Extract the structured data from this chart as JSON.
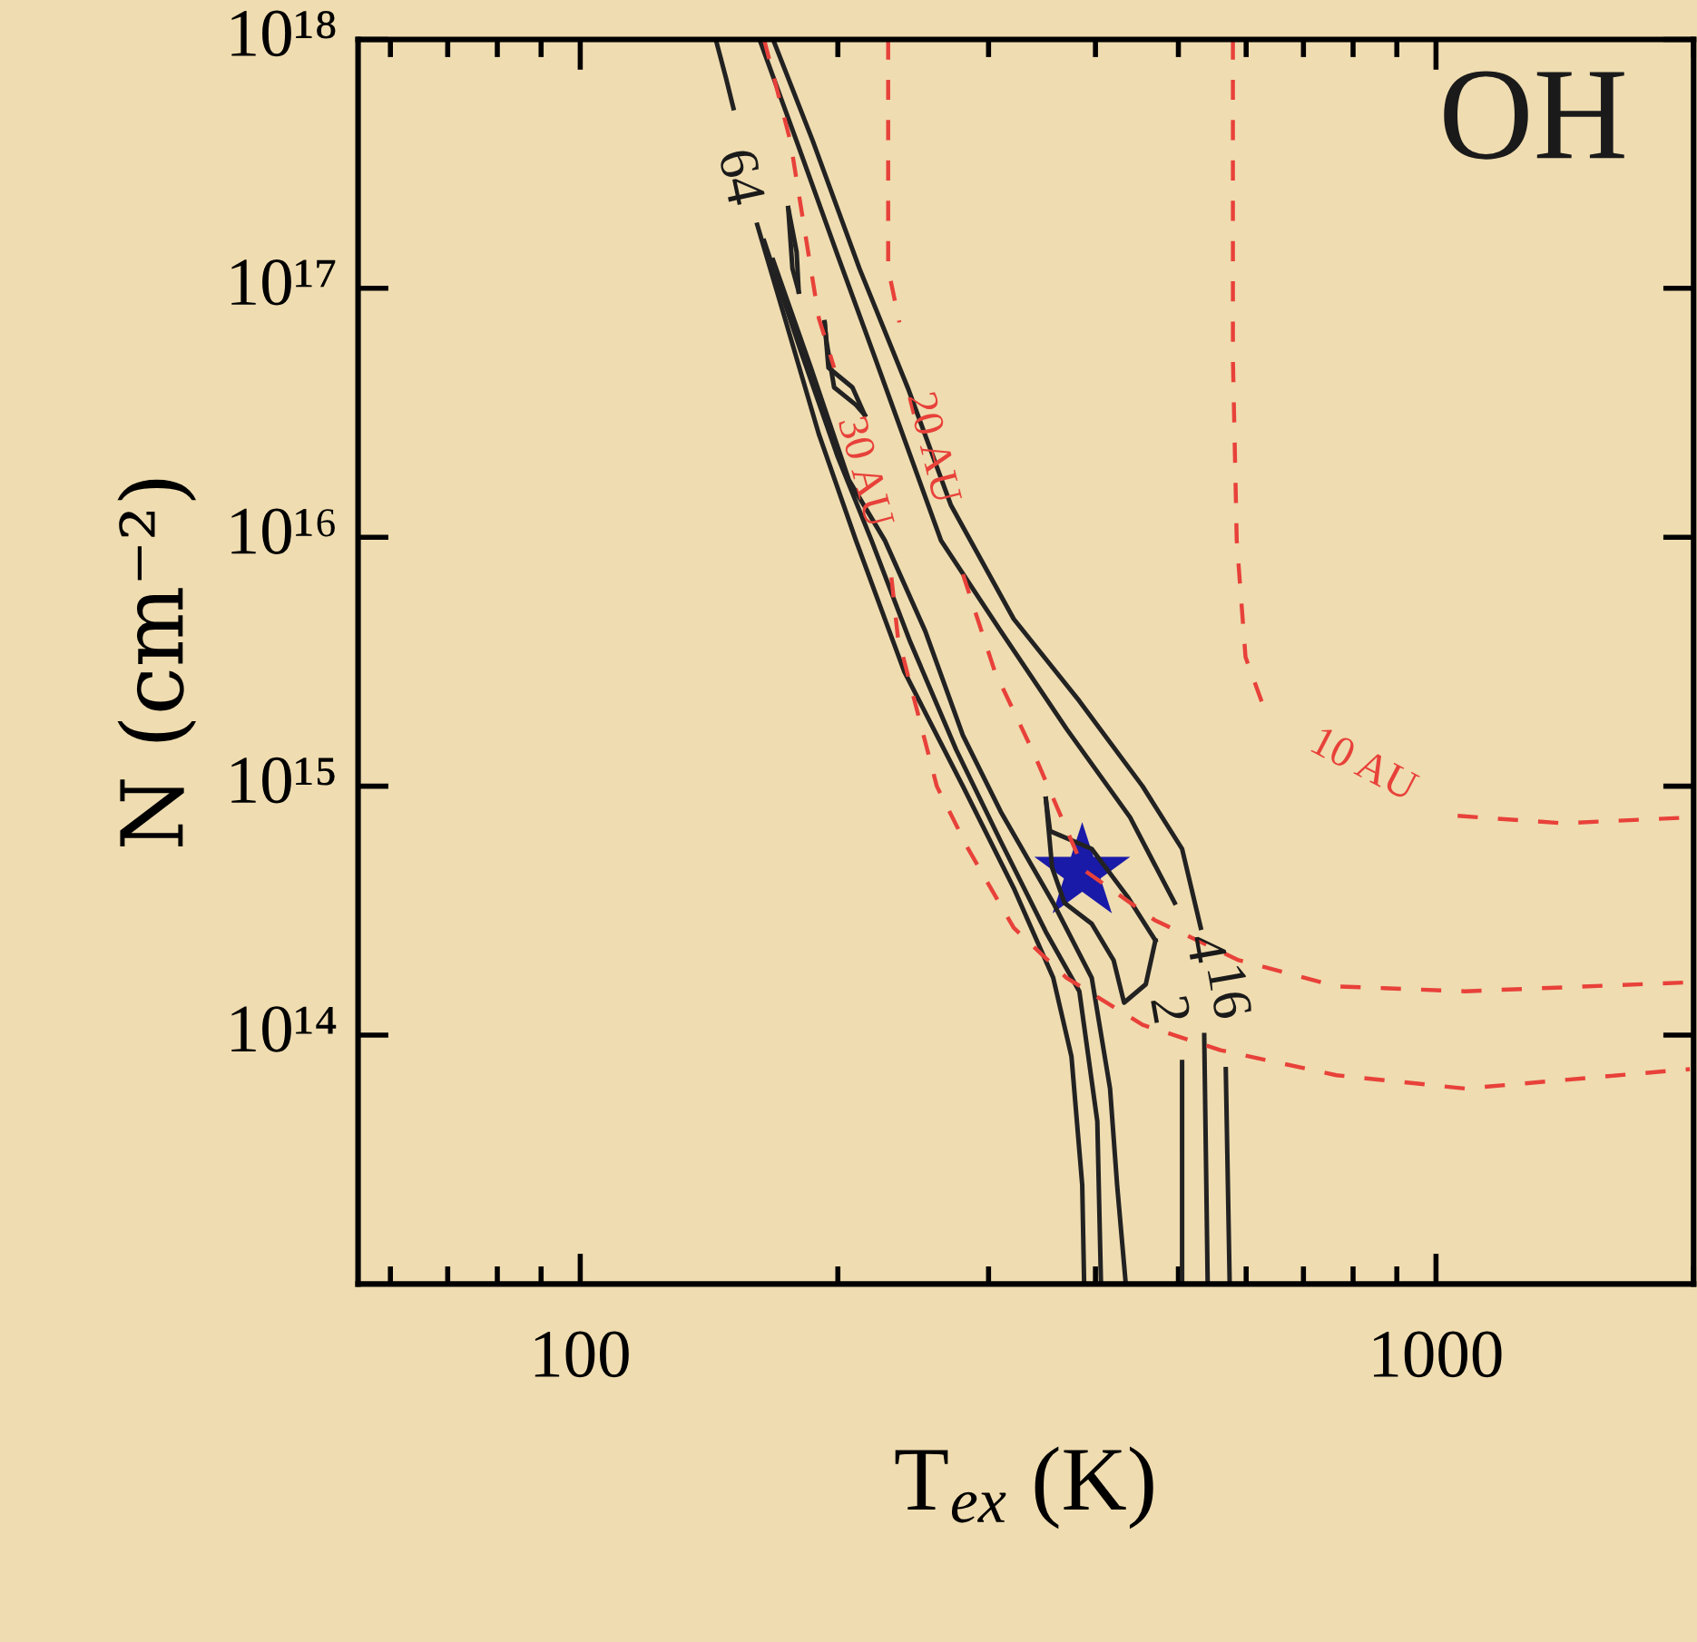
{
  "chart_data": {
    "type": "line",
    "xlabel": "T$_{ex}$ (K)",
    "ylabel": "N (cm⁻²)",
    "log": "xy",
    "xlim": [
      55,
      2000
    ],
    "ylim": [
      10000000000000.0,
      1e+18
    ],
    "xticks": [
      100,
      1000
    ],
    "yticks": [
      {
        "value": 100000000000000.0,
        "label": "10¹⁴"
      },
      {
        "value": 1000000000000000.0,
        "label": "10¹⁵"
      },
      {
        "value": 1e+16,
        "label": "10¹⁶"
      },
      {
        "value": 1e+17,
        "label": "10¹⁷"
      },
      {
        "value": 1e+18,
        "label": "10¹⁸"
      }
    ],
    "series": [
      {
        "color": "#222222",
        "x": [
          144,
          148,
          151,
          156,
          161,
          174,
          190,
          210,
          239,
          280,
          321,
          357,
          375,
          386,
          388
        ],
        "values": [
          1e+18,
          7e+17,
          5.3e+17,
          null,
          1.8e+17,
          7.3e+16,
          2.6e+16,
          9700000000000000.0,
          2900000000000000.0,
          1000000000000000.0,
          390000000000000.0,
          170000000000000.0,
          82000000000000.0,
          25000000000000.0,
          10000000000000.0
        ]
      },
      {
        "color": "#222222",
        "x": [
          164,
          181,
          200,
          219,
          243,
          275,
          310,
          350,
          383,
          402,
          406
        ],
        "values": [
          1.55e+17,
          5.6e+16,
          2.1e+16,
          9700000000000000.0,
          3800000000000000.0,
          1400000000000000.0,
          600000000000000.0,
          260000000000000.0,
          150000000000000.0,
          45000000000000.0,
          10000000000000.0
        ]
      },
      {
        "color": "#222222",
        "x": [
          168,
          186,
          206,
          227,
          253,
          280,
          310,
          357,
          396,
          416,
          424,
          434
        ],
        "values": [
          1.3e+17,
          4.8e+16,
          1.7e+16,
          9700000000000000.0,
          4200000000000000.0,
          1600000000000000.0,
          790000000000000.0,
          340000000000000.0,
          170000000000000.0,
          61000000000000.0,
          25000000000000.0,
          10000000000000.0
        ]
      },
      {
        "color": "#222222",
        "x": [
          162,
          179,
          200,
          220,
          239,
          264,
          310,
          370,
          439,
          495,
          500,
          505,
          505
        ],
        "values": [
          1e+18,
          3.9e+17,
          1.35e+17,
          5.5e+16,
          2.5e+16,
          9700000000000000.0,
          4200000000000000.0,
          1700000000000000.0,
          750000000000000.0,
          340000000000000.0,
          null,
          78000000000000.0,
          10000000000000.0
        ]
      },
      {
        "color": "#222222",
        "x": [
          168,
          187,
          212,
          242,
          271,
          321,
          383,
          454,
          505,
          531,
          541,
          568,
          574
        ],
        "values": [
          1e+18,
          3.9e+17,
          1.2e+17,
          3.9e+16,
          1.35e+16,
          4700000000000000.0,
          2200000000000000.0,
          1000000000000000.0,
          560000000000000.0,
          270000000000000.0,
          null,
          73000000000000.0,
          10000000000000.0
        ]
      },
      {
        "color": "#222222",
        "x": [
          536,
          541
        ],
        "values": [
          100000000000000.0,
          10000000000000.0
        ]
      },
      {
        "color": "#222222",
        "x": [
          350,
          354,
          396,
          436,
          470
        ],
        "values": [
          890000000000000.0,
          660000000000000.0,
          560000000000000.0,
          360000000000000.0,
          240000000000000.0
        ]
      },
      {
        "color": "#222222",
        "x": [
          350,
          356,
          368,
          396,
          420,
          432,
          458,
          470
        ],
        "values": [
          890000000000000.0,
          470000000000000.0,
          340000000000000.0,
          280000000000000.0,
          200000000000000.0,
          135000000000000.0,
          160000000000000.0,
          240000000000000.0
        ]
      },
      {
        "color": "#222222",
        "x": [
          175,
          179,
          180
        ],
        "values": [
          2.1e+17,
          1.4e+17,
          9.7e+16
        ]
      },
      {
        "color": "#222222",
        "x": [
          175,
          177,
          180
        ],
        "values": [
          2.1e+17,
          1.2e+17,
          9.7e+16
        ]
      },
      {
        "color": "#222222",
        "x": [
          193,
          195,
          208,
          215
        ],
        "values": [
          7.3e+16,
          4.8e+16,
          4e+16,
          3.1e+16
        ]
      },
      {
        "color": "#222222",
        "x": [
          193,
          194,
          198,
          210,
          215
        ],
        "values": [
          7.3e+16,
          6.1e+16,
          4e+16,
          3.4e+16,
          3.1e+16
        ]
      },
      {
        "name": "10 AU",
        "color": "#e8413a",
        "line_style": "dashed",
        "x": [
          579,
          579,
          585,
          599,
          635,
          821,
          1060,
          1406,
          2000
        ],
        "values": [
          1e+18,
          5.2e+16,
          9700000000000000.0,
          3300000000000000.0,
          1900000000000000.0,
          null,
          760000000000000.0,
          710000000000000.0,
          750000000000000.0
        ]
      },
      {
        "name": "20 AU",
        "color": "#e8413a",
        "line_style": "dashed",
        "x": [
          229,
          229,
          236,
          257,
          280,
          305,
          339,
          388,
          469,
          588,
          765,
          1081,
          1980
        ],
        "values": [
          1e+18,
          1.2e+17,
          7.3e+16,
          null,
          7100000000000000.0,
          2900000000000000.0,
          1350000000000000.0,
          460000000000000.0,
          290000000000000.0,
          200000000000000.0,
          157000000000000.0,
          150000000000000.0,
          163000000000000.0
        ]
      },
      {
        "name": "30 AU",
        "color": "#e8413a",
        "line_style": "dashed",
        "x": [
          164,
          176,
          190,
          198,
          214,
          231,
          235,
          261,
          284,
          321,
          370,
          454,
          560,
          765,
          1081,
          1980
        ],
        "values": [
          1e+18,
          3.9e+17,
          7.6e+16,
          4.8e+16,
          null,
          6900000000000000.0,
          4000000000000000.0,
          1000000000000000.0,
          560000000000000.0,
          270000000000000.0,
          170000000000000.0,
          110000000000000.0,
          87000000000000.0,
          69000000000000.0,
          61000000000000.0,
          73000000000000.0
        ]
      },
      {
        "type": "scatter",
        "marker": "star",
        "color": "#1a1aa8",
        "x": [
          386
        ],
        "values": [
          450000000000000.0
        ]
      }
    ],
    "annotations": [
      "OH",
      "64",
      "4",
      "16",
      "2"
    ]
  }
}
